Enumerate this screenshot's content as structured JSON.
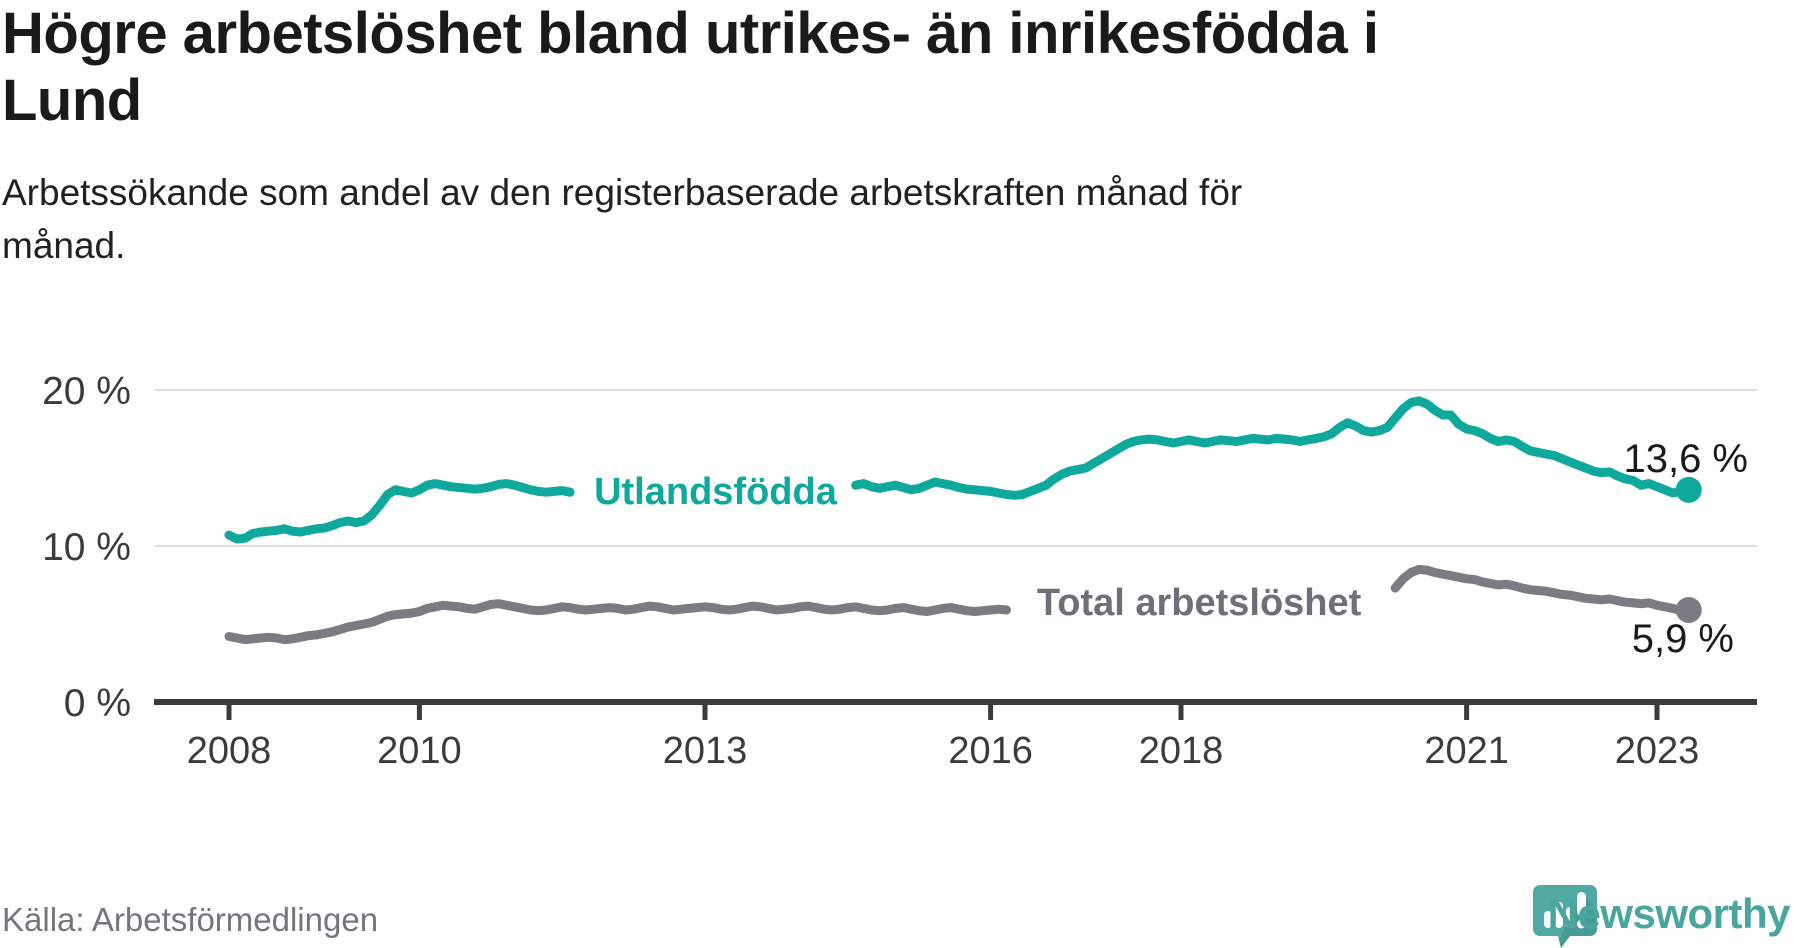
{
  "title": {
    "line1": "Högre arbetslöshet bland utrikes- än inrikesfödda i",
    "line2": "Lund"
  },
  "subtitle": {
    "line1": "Arbetssökande som andel av den registerbaserade arbetskraften månad för",
    "line2": "månad."
  },
  "source": "Källa: Arbetsförmedlingen",
  "branding": {
    "name": "Newsworthy",
    "logo_color": "#50a9a2",
    "logo_shadow_color": "#3f948d",
    "text_color": "#4aa59e"
  },
  "chart_data": {
    "type": "line",
    "title": "Högre arbetslöshet bland utrikes- än inrikesfödda i Lund",
    "xlabel": "",
    "ylabel": "Arbetssökande som andel av den registerbaserade arbetskraften",
    "x_start_year": 2008,
    "x_months_per_point": 1,
    "x_end_label_years": 2023.33,
    "x_ticks": [
      2008,
      2010,
      2013,
      2016,
      2018,
      2021,
      2023
    ],
    "y_ticks": [
      {
        "value": 0,
        "label": "0 %"
      },
      {
        "value": 10,
        "label": "10 %"
      },
      {
        "value": 20,
        "label": "20 %"
      }
    ],
    "ylim": [
      0,
      22
    ],
    "grid": "horizontal",
    "legend_position": "inline",
    "colors": {
      "grid": "#dcdcdc",
      "axis": "#3a3a3a",
      "tick_label": "#3b3b3b",
      "value_label": "#1a1a1a"
    },
    "series": [
      {
        "name": "Utlandsfödda",
        "color": "#0fa89c",
        "label_color": "#0fa89c",
        "end_label": "13,6 %",
        "end_value": 13.6,
        "label_gap_years": [
          2011.66,
          2014.56
        ],
        "values": [
          10.7,
          10.45,
          10.5,
          10.8,
          10.9,
          10.95,
          11.0,
          11.1,
          10.95,
          10.9,
          11.0,
          11.1,
          11.15,
          11.3,
          11.5,
          11.6,
          11.5,
          11.6,
          12.0,
          12.6,
          13.3,
          13.6,
          13.5,
          13.4,
          13.6,
          13.9,
          14.0,
          13.9,
          13.8,
          13.75,
          13.7,
          13.65,
          13.7,
          13.8,
          13.95,
          14.0,
          13.9,
          13.75,
          13.6,
          13.5,
          13.45,
          13.5,
          13.55,
          13.45,
          13.4,
          13.45,
          13.5,
          13.55,
          13.6,
          13.65,
          13.7,
          13.65,
          13.6,
          13.65,
          13.7,
          13.75,
          13.8,
          13.85,
          13.8,
          13.85,
          13.8,
          13.85,
          13.9,
          13.95,
          14.0,
          14.0,
          14.05,
          14.1,
          14.05,
          14.1,
          14.15,
          14.1,
          14.1,
          14.15,
          14.2,
          14.15,
          14.1,
          14.05,
          14.0,
          13.9,
          14.0,
          13.8,
          13.7,
          13.8,
          13.9,
          13.75,
          13.6,
          13.7,
          13.9,
          14.1,
          14.0,
          13.9,
          13.75,
          13.65,
          13.6,
          13.55,
          13.5,
          13.4,
          13.3,
          13.25,
          13.3,
          13.5,
          13.7,
          13.9,
          14.3,
          14.6,
          14.8,
          14.9,
          15.0,
          15.3,
          15.6,
          15.9,
          16.2,
          16.5,
          16.7,
          16.8,
          16.85,
          16.8,
          16.7,
          16.6,
          16.7,
          16.8,
          16.7,
          16.6,
          16.7,
          16.8,
          16.75,
          16.7,
          16.8,
          16.9,
          16.85,
          16.8,
          16.9,
          16.85,
          16.8,
          16.7,
          16.8,
          16.9,
          17.0,
          17.2,
          17.6,
          17.9,
          17.7,
          17.4,
          17.3,
          17.4,
          17.6,
          18.2,
          18.8,
          19.2,
          19.3,
          19.1,
          18.7,
          18.4,
          18.4,
          17.8,
          17.5,
          17.4,
          17.2,
          16.9,
          16.7,
          16.8,
          16.7,
          16.4,
          16.1,
          16.0,
          15.9,
          15.8,
          15.6,
          15.4,
          15.2,
          15.0,
          14.8,
          14.7,
          14.75,
          14.5,
          14.3,
          14.2,
          13.9,
          14.0,
          13.8,
          13.6,
          13.4,
          13.5,
          13.6
        ]
      },
      {
        "name": "Total arbetslöshet",
        "color": "#7b7b83",
        "label_color": "#6f6f78",
        "end_label": "5,9 %",
        "end_value": 5.9,
        "label_gap_years": [
          2016.18,
          2020.2
        ],
        "values": [
          4.2,
          4.1,
          4.0,
          4.05,
          4.1,
          4.15,
          4.1,
          4.0,
          4.05,
          4.15,
          4.25,
          4.3,
          4.4,
          4.5,
          4.65,
          4.8,
          4.9,
          5.0,
          5.1,
          5.3,
          5.5,
          5.6,
          5.65,
          5.7,
          5.8,
          6.0,
          6.1,
          6.2,
          6.15,
          6.1,
          6.0,
          5.95,
          6.1,
          6.25,
          6.3,
          6.2,
          6.1,
          6.0,
          5.9,
          5.85,
          5.9,
          6.0,
          6.1,
          6.05,
          5.95,
          5.9,
          5.95,
          6.0,
          6.05,
          6.0,
          5.9,
          5.95,
          6.05,
          6.15,
          6.1,
          6.0,
          5.9,
          5.95,
          6.0,
          6.05,
          6.1,
          6.05,
          5.95,
          5.9,
          5.95,
          6.05,
          6.15,
          6.1,
          6.0,
          5.9,
          5.95,
          6.0,
          6.1,
          6.15,
          6.05,
          5.95,
          5.9,
          5.95,
          6.05,
          6.1,
          6.0,
          5.9,
          5.85,
          5.9,
          6.0,
          6.05,
          5.95,
          5.85,
          5.8,
          5.9,
          6.0,
          6.05,
          5.95,
          5.85,
          5.8,
          5.85,
          5.9,
          5.95,
          5.9,
          5.85,
          5.8,
          5.85,
          5.95,
          6.0,
          5.95,
          5.9,
          5.85,
          5.9,
          5.95,
          6.0,
          5.95,
          5.9,
          5.85,
          5.9,
          6.0,
          6.05,
          5.95,
          5.9,
          5.85,
          5.9,
          5.95,
          6.0,
          5.9,
          5.85,
          5.8,
          5.85,
          5.95,
          6.0,
          5.9,
          5.85,
          5.8,
          5.85,
          5.9,
          5.95,
          5.9,
          5.85,
          5.9,
          5.95,
          6.05,
          6.1,
          6.05,
          6.0,
          6.05,
          6.1,
          6.2,
          6.3,
          6.6,
          7.3,
          7.9,
          8.3,
          8.5,
          8.45,
          8.3,
          8.2,
          8.1,
          8.0,
          7.9,
          7.85,
          7.7,
          7.6,
          7.5,
          7.55,
          7.45,
          7.3,
          7.2,
          7.15,
          7.1,
          7.0,
          6.9,
          6.85,
          6.75,
          6.65,
          6.6,
          6.55,
          6.6,
          6.5,
          6.4,
          6.35,
          6.3,
          6.35,
          6.2,
          6.1,
          6.0,
          5.85,
          5.9
        ]
      }
    ]
  }
}
